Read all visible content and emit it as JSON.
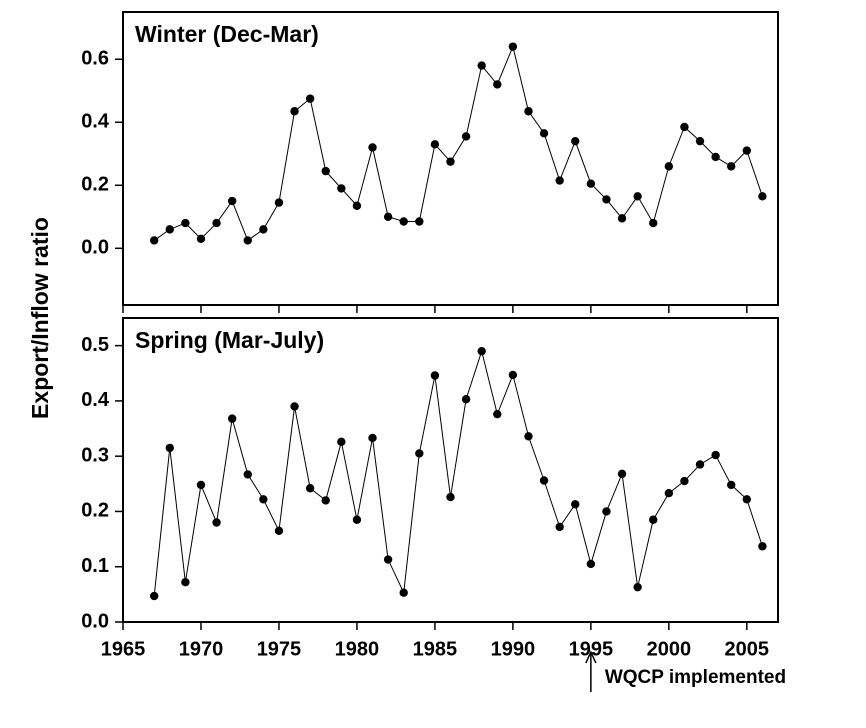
{
  "y_label": "Export/Inflow ratio",
  "chart_data": [
    {
      "type": "line",
      "title": "Winter (Dec-Mar)",
      "color": "#000000",
      "show_xtick_labels": false,
      "x": [
        1967,
        1968,
        1969,
        1970,
        1971,
        1972,
        1973,
        1974,
        1975,
        1976,
        1977,
        1978,
        1979,
        1980,
        1981,
        1982,
        1983,
        1984,
        1985,
        1986,
        1987,
        1988,
        1989,
        1990,
        1991,
        1992,
        1993,
        1994,
        1995,
        1996,
        1997,
        1998,
        1999,
        2000,
        2001,
        2002,
        2003,
        2004,
        2005,
        2006
      ],
      "values": [
        0.025,
        0.06,
        0.08,
        0.03,
        0.08,
        0.15,
        0.025,
        0.06,
        0.145,
        0.435,
        0.475,
        0.245,
        0.19,
        0.135,
        0.32,
        0.1,
        0.085,
        0.085,
        0.33,
        0.275,
        0.355,
        0.58,
        0.52,
        0.64,
        0.435,
        0.365,
        0.215,
        0.34,
        0.205,
        0.155,
        0.095,
        0.165,
        0.08,
        0.26,
        0.385,
        0.34,
        0.29,
        0.26,
        0.31,
        0.165
      ],
      "xlim": [
        1965,
        2007
      ],
      "xticks": [
        1965,
        1970,
        1975,
        1980,
        1985,
        1990,
        1995,
        2000,
        2005
      ],
      "ylim": [
        -0.18,
        0.75
      ],
      "yticks": [
        {
          "value": 0,
          "label": "0.0"
        },
        0.2,
        0.4,
        0.6
      ]
    },
    {
      "type": "line",
      "title": "Spring (Mar-July)",
      "color": "#000000",
      "show_xtick_labels": true,
      "x": [
        1967,
        1968,
        1969,
        1970,
        1971,
        1972,
        1973,
        1974,
        1975,
        1976,
        1977,
        1978,
        1979,
        1980,
        1981,
        1982,
        1983,
        1984,
        1985,
        1986,
        1987,
        1988,
        1989,
        1990,
        1991,
        1992,
        1993,
        1994,
        1995,
        1996,
        1997,
        1998,
        1999,
        2000,
        2001,
        2002,
        2003,
        2004,
        2005,
        2006
      ],
      "values": [
        0.047,
        0.315,
        0.072,
        0.248,
        0.18,
        0.368,
        0.267,
        0.222,
        0.165,
        0.39,
        0.242,
        0.22,
        0.326,
        0.185,
        0.333,
        0.113,
        0.053,
        0.305,
        0.446,
        0.226,
        0.403,
        0.49,
        0.376,
        0.447,
        0.336,
        0.256,
        0.172,
        0.213,
        0.105,
        0.2,
        0.268,
        0.063,
        0.185,
        0.233,
        0.255,
        0.285,
        0.302,
        0.248,
        0.222,
        0.137
      ],
      "xlim": [
        1965,
        2007
      ],
      "xticks": [
        1965,
        1970,
        1975,
        1980,
        1985,
        1990,
        1995,
        2000,
        2005
      ],
      "ylim": [
        0,
        0.55
      ],
      "yticks": [
        {
          "value": 0,
          "label": "0.0"
        },
        0.1,
        0.2,
        0.3,
        0.4,
        0.5
      ],
      "annotations": [
        {
          "text": "WQCP implemented",
          "x": 1995
        }
      ]
    }
  ]
}
